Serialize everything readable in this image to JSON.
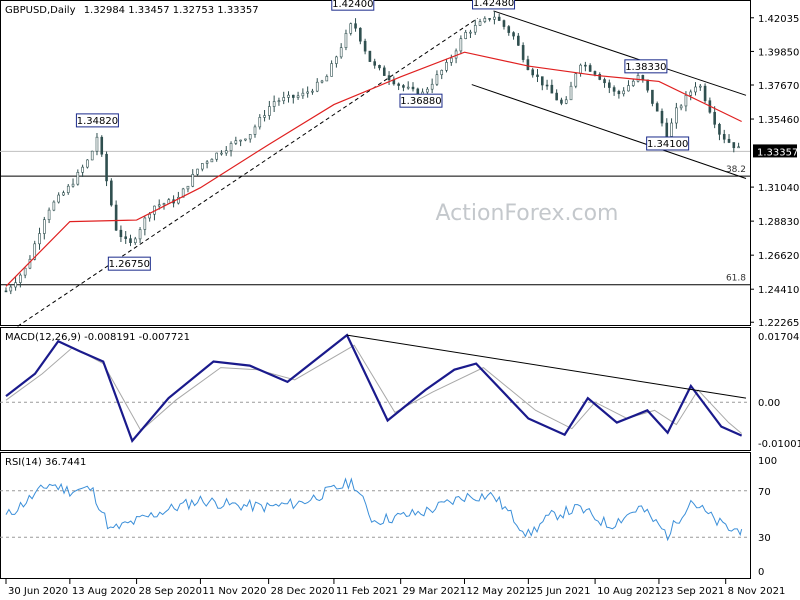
{
  "header": {
    "symbol": "GBPUSD,Daily",
    "ohlc": "1.32984 1.33457 1.32753 1.33357"
  },
  "watermark": "ActionForex.com",
  "chart_data": [
    {
      "type": "candlestick",
      "panel": "price",
      "title": "GBPUSD,Daily  1.32984 1.33457 1.32753 1.33357",
      "ylim": [
        1.2215,
        1.4306
      ],
      "y_ticks": [
        "1.42035",
        "1.39850",
        "1.37670",
        "1.35460",
        "1.33357",
        "1.31040",
        "1.28830",
        "1.26620",
        "1.24410",
        "1.22265"
      ],
      "last_price": "1.33357",
      "x_ticks": [
        "30 Jun 2020",
        "13 Aug 2020",
        "28 Sep 2020",
        "11 Nov 2020",
        "28 Dec 2020",
        "11 Feb 2021",
        "29 Mar 2021",
        "12 May 2021",
        "25 Jun 2021",
        "10 Aug 2021",
        "23 Sep 2021",
        "8 Nov 2021"
      ],
      "close_series": [
        {
          "date": "2020-06-30",
          "value": 1.243
        },
        {
          "date": "2020-07-14",
          "value": 1.258
        },
        {
          "date": "2020-07-28",
          "value": 1.295
        },
        {
          "date": "2020-08-13",
          "value": 1.311
        },
        {
          "date": "2020-08-27",
          "value": 1.33
        },
        {
          "date": "2020-09-01",
          "value": 1.344
        },
        {
          "date": "2020-09-14",
          "value": 1.283
        },
        {
          "date": "2020-09-23",
          "value": 1.272
        },
        {
          "date": "2020-10-09",
          "value": 1.298
        },
        {
          "date": "2020-10-26",
          "value": 1.302
        },
        {
          "date": "2020-11-11",
          "value": 1.325
        },
        {
          "date": "2020-11-27",
          "value": 1.335
        },
        {
          "date": "2020-12-15",
          "value": 1.345
        },
        {
          "date": "2020-12-31",
          "value": 1.366
        },
        {
          "date": "2021-01-20",
          "value": 1.37
        },
        {
          "date": "2021-02-05",
          "value": 1.38
        },
        {
          "date": "2021-02-24",
          "value": 1.418
        },
        {
          "date": "2021-03-09",
          "value": 1.39
        },
        {
          "date": "2021-03-29",
          "value": 1.376
        },
        {
          "date": "2021-04-12",
          "value": 1.37
        },
        {
          "date": "2021-04-30",
          "value": 1.39
        },
        {
          "date": "2021-05-12",
          "value": 1.41
        },
        {
          "date": "2021-06-01",
          "value": 1.422
        },
        {
          "date": "2021-06-15",
          "value": 1.408
        },
        {
          "date": "2021-06-25",
          "value": 1.388
        },
        {
          "date": "2021-07-20",
          "value": 1.362
        },
        {
          "date": "2021-07-30",
          "value": 1.392
        },
        {
          "date": "2021-08-10",
          "value": 1.385
        },
        {
          "date": "2021-08-25",
          "value": 1.37
        },
        {
          "date": "2021-09-10",
          "value": 1.383
        },
        {
          "date": "2021-09-29",
          "value": 1.344
        },
        {
          "date": "2021-10-05",
          "value": 1.36
        },
        {
          "date": "2021-10-20",
          "value": 1.379
        },
        {
          "date": "2021-11-04",
          "value": 1.345
        },
        {
          "date": "2021-11-10",
          "value": 1.34
        },
        {
          "date": "2021-11-19",
          "value": 1.3336
        }
      ],
      "moving_average": [
        {
          "date": "2020-06-30",
          "value": 1.246
        },
        {
          "date": "2020-08-13",
          "value": 1.288
        },
        {
          "date": "2020-09-28",
          "value": 1.289
        },
        {
          "date": "2020-11-11",
          "value": 1.31
        },
        {
          "date": "2020-12-28",
          "value": 1.338
        },
        {
          "date": "2021-02-11",
          "value": 1.364
        },
        {
          "date": "2021-03-29",
          "value": 1.382
        },
        {
          "date": "2021-05-12",
          "value": 1.398
        },
        {
          "date": "2021-06-25",
          "value": 1.389
        },
        {
          "date": "2021-08-10",
          "value": 1.383
        },
        {
          "date": "2021-09-23",
          "value": 1.379
        },
        {
          "date": "2021-11-19",
          "value": 1.353
        }
      ],
      "annotations": [
        {
          "label": "1.42400",
          "date": "2021-02-24",
          "value": 1.424
        },
        {
          "label": "1.42480",
          "date": "2021-06-01",
          "value": 1.4248
        },
        {
          "label": "1.38330",
          "date": "2021-09-14",
          "value": 1.3833
        },
        {
          "label": "1.36880",
          "date": "2021-04-12",
          "value": 1.3688
        },
        {
          "label": "1.34820",
          "date": "2020-09-01",
          "value": 1.3482
        },
        {
          "label": "1.34100",
          "date": "2021-09-29",
          "value": 1.341
        },
        {
          "label": "1.26750",
          "date": "2020-09-23",
          "value": 1.2675
        }
      ],
      "levels": [
        {
          "label": "38.2",
          "value": 1.3175
        },
        {
          "label": "61.8",
          "value": 1.247
        },
        {
          "label": "",
          "value": 1.3336
        }
      ],
      "trendlines": [
        {
          "style": "solid",
          "from": {
            "date": "2021-06-01",
            "value": 1.4248
          },
          "to": {
            "date": "2021-11-22",
            "value": 1.37
          }
        },
        {
          "style": "solid",
          "from": {
            "date": "2021-05-17",
            "value": 1.377
          },
          "to": {
            "date": "2021-11-22",
            "value": 1.316
          }
        },
        {
          "style": "dashed",
          "from": {
            "date": "2020-07-08",
            "value": 1.22
          },
          "to": {
            "date": "2021-05-21",
            "value": 1.42
          }
        }
      ]
    },
    {
      "type": "line",
      "panel": "macd",
      "title": "MACD(12,26,9) -0.008191 -0.007721",
      "ylim": [
        -0.0115,
        0.018
      ],
      "y_ticks": [
        "0.017047",
        "0.00",
        "-0.010013"
      ],
      "series": [
        {
          "name": "MACD",
          "values": [
            {
              "date": "2020-06-30",
              "value": 0.0015
            },
            {
              "date": "2020-07-20",
              "value": 0.007
            },
            {
              "date": "2020-08-05",
              "value": 0.015
            },
            {
              "date": "2020-08-20",
              "value": 0.0125
            },
            {
              "date": "2020-09-05",
              "value": 0.01
            },
            {
              "date": "2020-09-25",
              "value": -0.0095
            },
            {
              "date": "2020-10-20",
              "value": 0.001
            },
            {
              "date": "2020-11-20",
              "value": 0.01
            },
            {
              "date": "2020-12-15",
              "value": 0.009
            },
            {
              "date": "2021-01-10",
              "value": 0.005
            },
            {
              "date": "2021-02-20",
              "value": 0.0165
            },
            {
              "date": "2021-03-20",
              "value": -0.0045
            },
            {
              "date": "2021-04-15",
              "value": 0.003
            },
            {
              "date": "2021-05-05",
              "value": 0.008
            },
            {
              "date": "2021-05-20",
              "value": 0.0095
            },
            {
              "date": "2021-06-25",
              "value": -0.004
            },
            {
              "date": "2021-07-20",
              "value": -0.008
            },
            {
              "date": "2021-08-05",
              "value": 0.001
            },
            {
              "date": "2021-08-25",
              "value": -0.005
            },
            {
              "date": "2021-09-15",
              "value": -0.002
            },
            {
              "date": "2021-09-29",
              "value": -0.0075
            },
            {
              "date": "2021-10-15",
              "value": 0.004
            },
            {
              "date": "2021-11-05",
              "value": -0.006
            },
            {
              "date": "2021-11-19",
              "value": -0.0082
            }
          ]
        },
        {
          "name": "Signal",
          "values": [
            {
              "date": "2020-06-30",
              "value": 0.0005
            },
            {
              "date": "2020-07-25",
              "value": 0.007
            },
            {
              "date": "2020-08-15",
              "value": 0.0135
            },
            {
              "date": "2020-09-05",
              "value": 0.0095
            },
            {
              "date": "2020-10-01",
              "value": -0.007
            },
            {
              "date": "2020-10-25",
              "value": 0.0005
            },
            {
              "date": "2020-11-25",
              "value": 0.0085
            },
            {
              "date": "2020-12-20",
              "value": 0.008
            },
            {
              "date": "2021-01-15",
              "value": 0.0055
            },
            {
              "date": "2021-02-25",
              "value": 0.014
            },
            {
              "date": "2021-03-25",
              "value": -0.0025
            },
            {
              "date": "2021-04-20",
              "value": 0.0025
            },
            {
              "date": "2021-05-25",
              "value": 0.0085
            },
            {
              "date": "2021-06-30",
              "value": -0.002
            },
            {
              "date": "2021-07-25",
              "value": -0.0065
            },
            {
              "date": "2021-08-10",
              "value": 0.0
            },
            {
              "date": "2021-09-01",
              "value": -0.004
            },
            {
              "date": "2021-09-20",
              "value": -0.002
            },
            {
              "date": "2021-10-05",
              "value": -0.0055
            },
            {
              "date": "2021-10-20",
              "value": 0.003
            },
            {
              "date": "2021-11-10",
              "value": -0.005
            },
            {
              "date": "2021-11-19",
              "value": -0.0077
            }
          ]
        }
      ],
      "trendline": {
        "from": {
          "date": "2021-02-20",
          "value": 0.0165
        },
        "to": {
          "date": "2021-11-22",
          "value": 0.001
        }
      }
    },
    {
      "type": "line",
      "panel": "rsi",
      "title": "RSI(14) 36.7441",
      "ylim": [
        0,
        100
      ],
      "y_ticks": [
        "100",
        "70",
        "30",
        "0"
      ],
      "levels": [
        70,
        30
      ],
      "series": [
        {
          "name": "RSI",
          "values": [
            {
              "date": "2020-06-30",
              "value": 48
            },
            {
              "date": "2020-07-15",
              "value": 62
            },
            {
              "date": "2020-07-30",
              "value": 76
            },
            {
              "date": "2020-08-13",
              "value": 70
            },
            {
              "date": "2020-08-28",
              "value": 72
            },
            {
              "date": "2020-09-10",
              "value": 36
            },
            {
              "date": "2020-09-28",
              "value": 44
            },
            {
              "date": "2020-10-15",
              "value": 52
            },
            {
              "date": "2020-11-11",
              "value": 62
            },
            {
              "date": "2020-12-01",
              "value": 58
            },
            {
              "date": "2020-12-28",
              "value": 56
            },
            {
              "date": "2021-01-20",
              "value": 60
            },
            {
              "date": "2021-02-24",
              "value": 78
            },
            {
              "date": "2021-03-10",
              "value": 44
            },
            {
              "date": "2021-03-29",
              "value": 48
            },
            {
              "date": "2021-04-15",
              "value": 52
            },
            {
              "date": "2021-05-12",
              "value": 65
            },
            {
              "date": "2021-06-01",
              "value": 66
            },
            {
              "date": "2021-06-25",
              "value": 32
            },
            {
              "date": "2021-07-10",
              "value": 48
            },
            {
              "date": "2021-07-30",
              "value": 55
            },
            {
              "date": "2021-08-20",
              "value": 40
            },
            {
              "date": "2021-09-10",
              "value": 56
            },
            {
              "date": "2021-09-29",
              "value": 32
            },
            {
              "date": "2021-10-15",
              "value": 62
            },
            {
              "date": "2021-11-01",
              "value": 44
            },
            {
              "date": "2021-11-12",
              "value": 36
            },
            {
              "date": "2021-11-19",
              "value": 37
            }
          ]
        }
      ]
    }
  ]
}
